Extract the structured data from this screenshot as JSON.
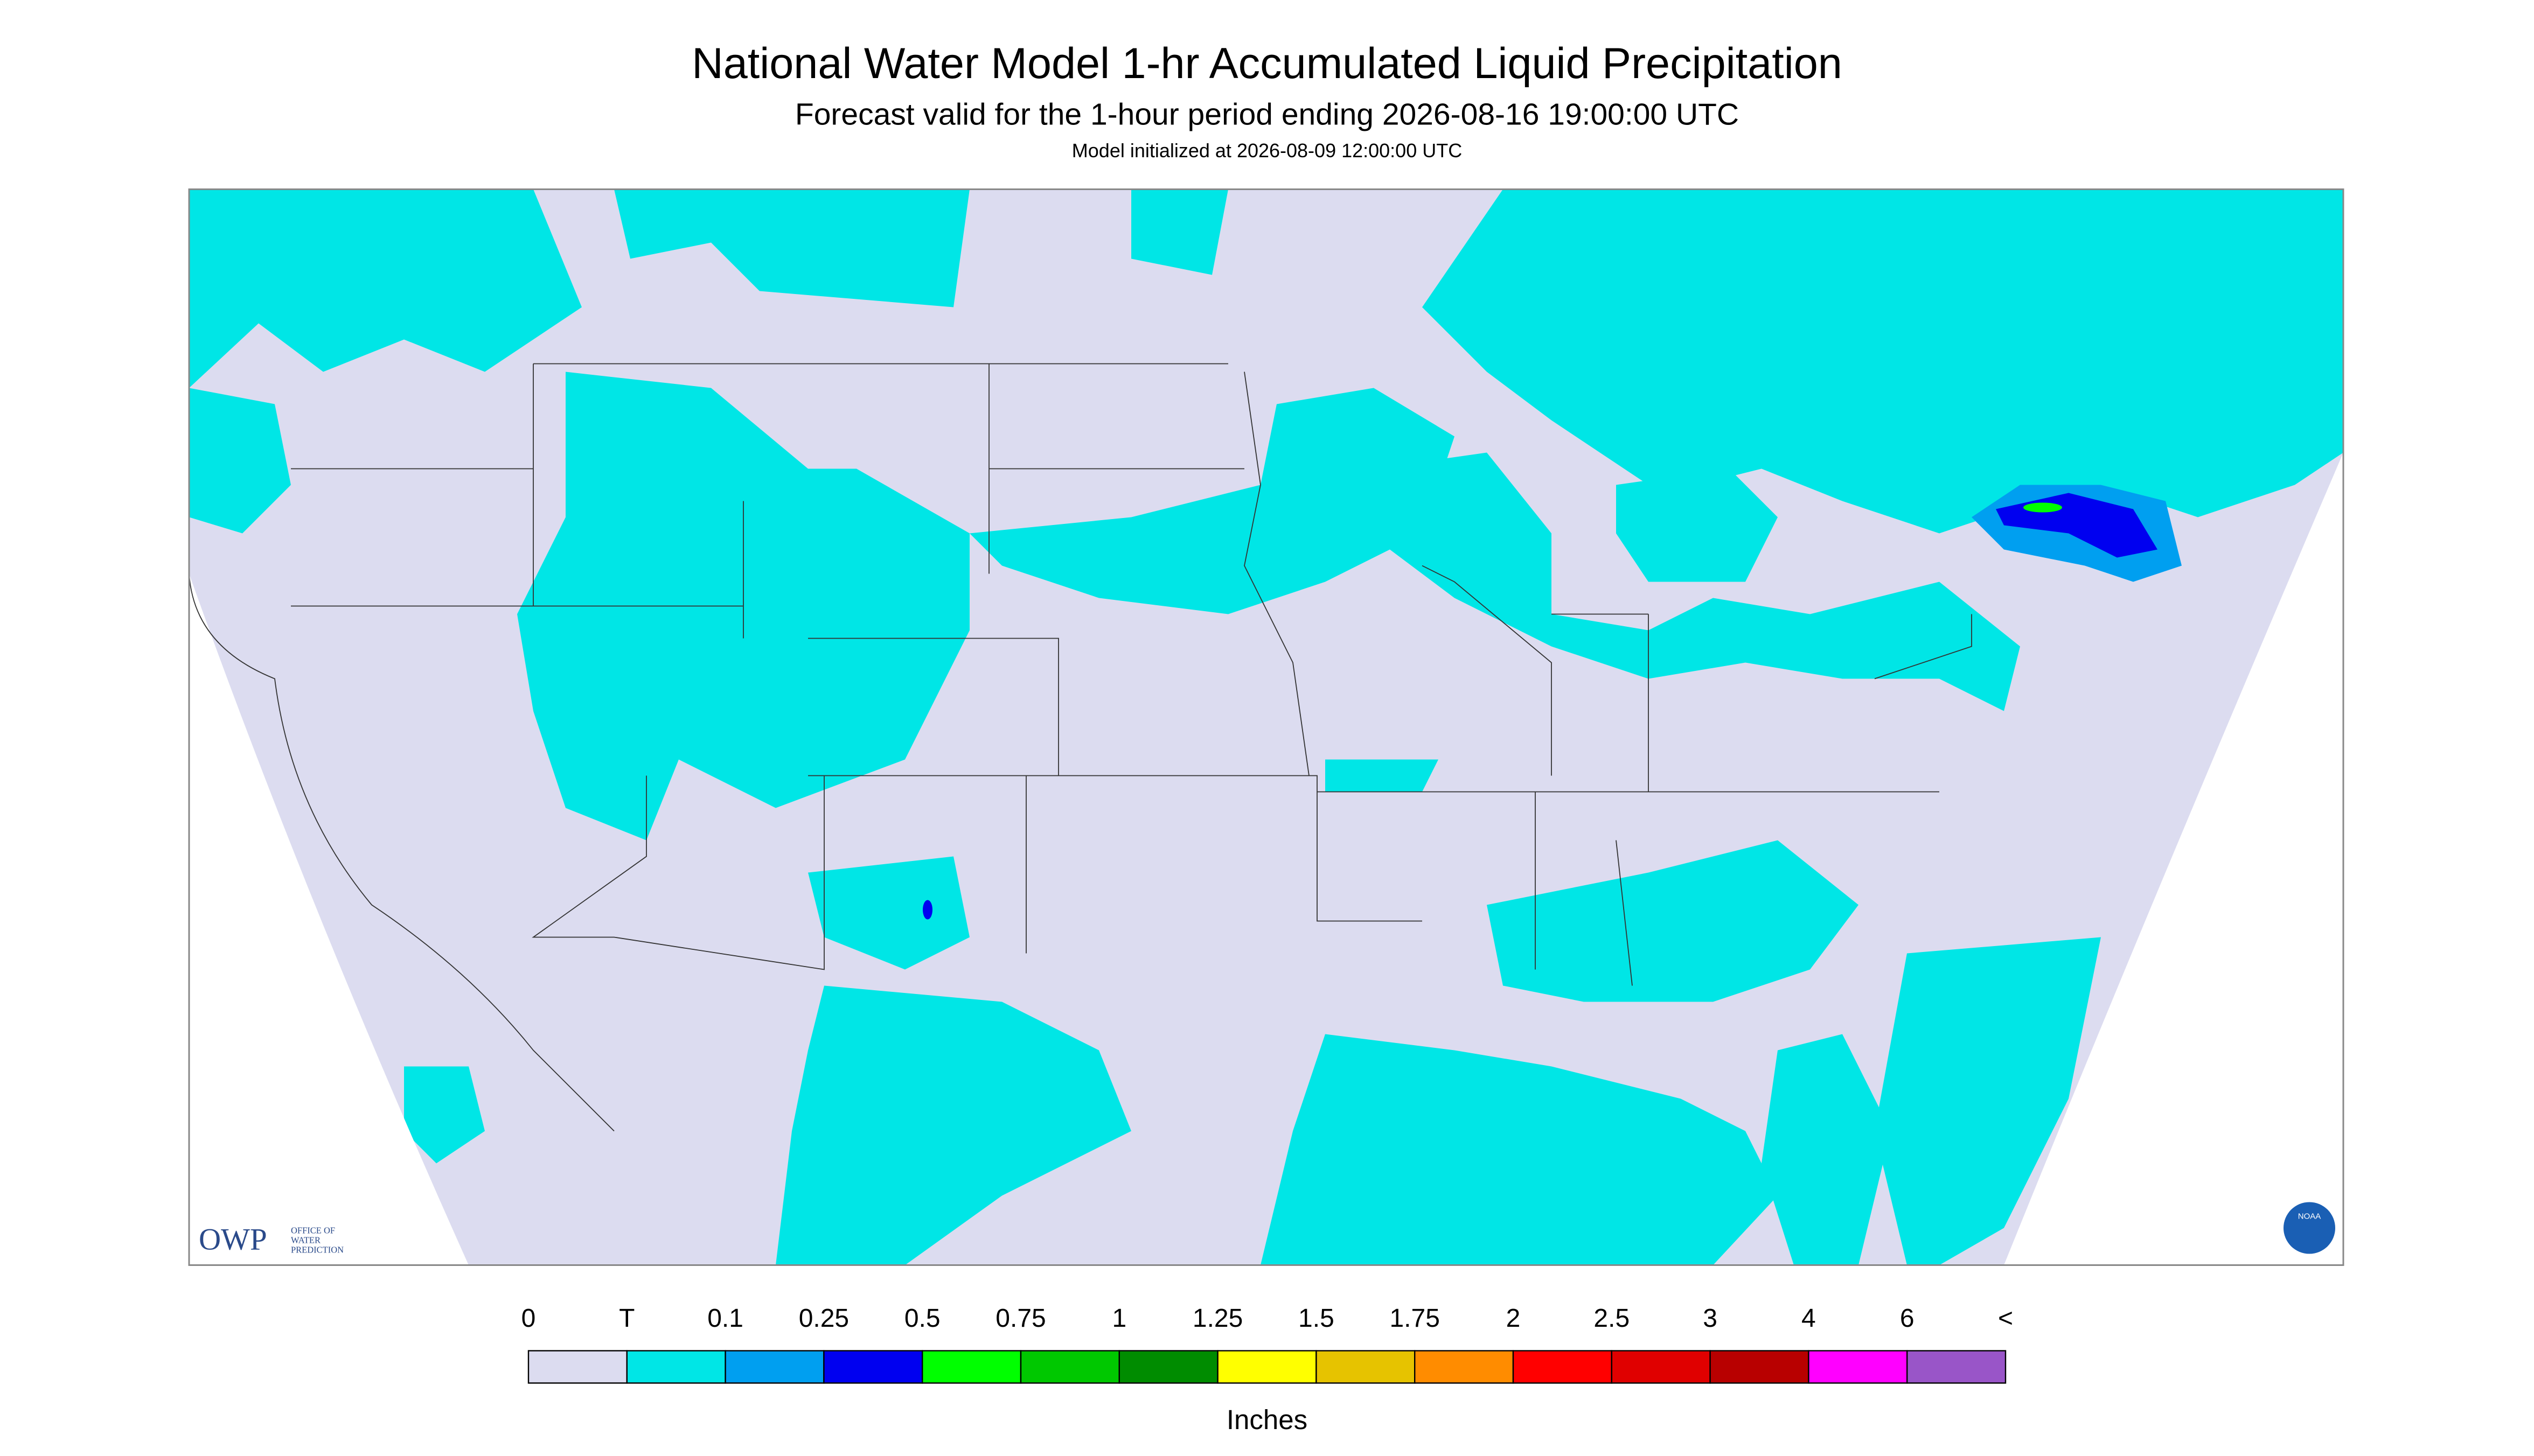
{
  "header": {
    "title": "National Water Model 1-hr Accumulated Liquid Precipitation",
    "subtitle": "Forecast valid for the 1-hour period ending 2026-08-16 19:00:00 UTC",
    "initialized": "Model initialized at 2026-08-09 12:00:00 UTC"
  },
  "legend": {
    "labels": [
      "0",
      "T",
      "0.1",
      "0.25",
      "0.5",
      "0.75",
      "1",
      "1.25",
      "1.5",
      "1.75",
      "2",
      "2.5",
      "3",
      "4",
      "6",
      "<"
    ],
    "colors": [
      "#dcdcf0",
      "#00e6e6",
      "#009ff0",
      "#0000f0",
      "#00ff00",
      "#00c800",
      "#008c00",
      "#ffff00",
      "#e6c300",
      "#ff8c00",
      "#ff0000",
      "#e00000",
      "#b80000",
      "#ff00ff",
      "#9955c8"
    ],
    "unit": "Inches"
  },
  "logos": {
    "owp": "OWP",
    "owp_text": [
      "OFFICE OF",
      "WATER",
      "PREDICTION"
    ],
    "noaa": "NOAA"
  }
}
